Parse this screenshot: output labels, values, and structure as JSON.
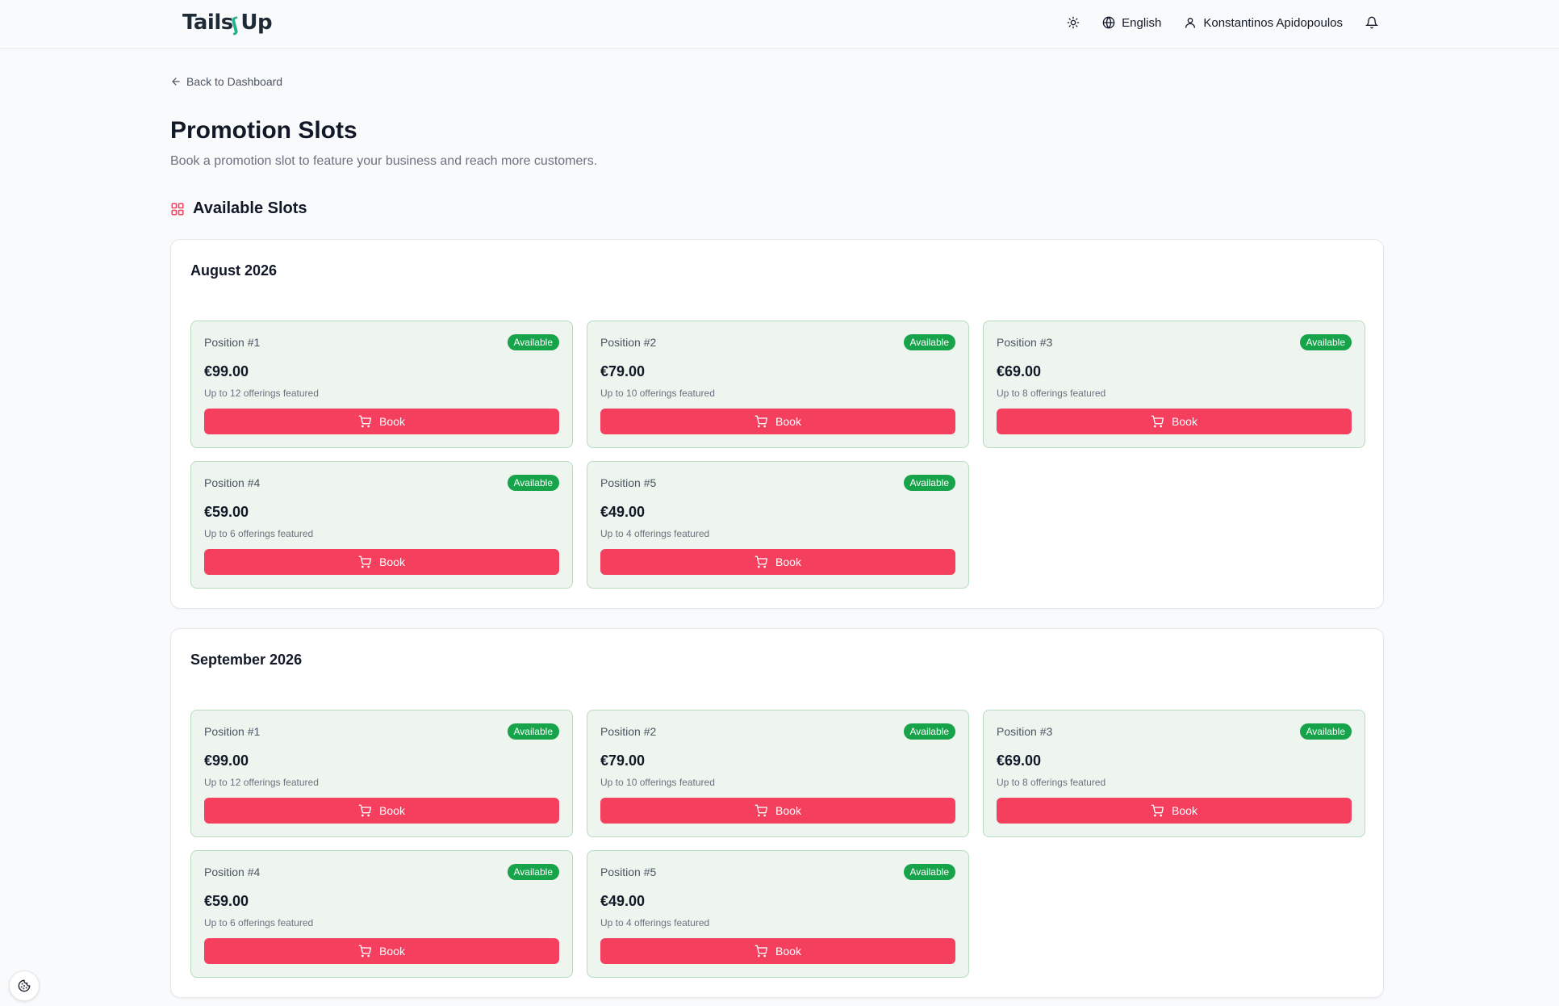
{
  "brand": {
    "part1": "Tails",
    "part2": "Up"
  },
  "nav": {
    "language": "English",
    "user_name": "Konstantinos Apidopoulos"
  },
  "back_link": "Back to Dashboard",
  "page": {
    "title": "Promotion Slots",
    "subtitle": "Book a promotion slot to feature your business and reach more customers."
  },
  "section_title": "Available Slots",
  "colors": {
    "accent": "#f43f5e",
    "available": "#16a34a",
    "slot_bg": "#edf5ee"
  },
  "months": [
    {
      "title": "August 2026",
      "slots": [
        {
          "position": "Position #1",
          "status": "Available",
          "price": "€99.00",
          "offerings": "Up to 12 offerings featured",
          "button": "Book"
        },
        {
          "position": "Position #2",
          "status": "Available",
          "price": "€79.00",
          "offerings": "Up to 10 offerings featured",
          "button": "Book"
        },
        {
          "position": "Position #3",
          "status": "Available",
          "price": "€69.00",
          "offerings": "Up to 8 offerings featured",
          "button": "Book"
        },
        {
          "position": "Position #4",
          "status": "Available",
          "price": "€59.00",
          "offerings": "Up to 6 offerings featured",
          "button": "Book"
        },
        {
          "position": "Position #5",
          "status": "Available",
          "price": "€49.00",
          "offerings": "Up to 4 offerings featured",
          "button": "Book"
        }
      ]
    },
    {
      "title": "September 2026",
      "slots": [
        {
          "position": "Position #1",
          "status": "Available",
          "price": "€99.00",
          "offerings": "Up to 12 offerings featured",
          "button": "Book"
        },
        {
          "position": "Position #2",
          "status": "Available",
          "price": "€79.00",
          "offerings": "Up to 10 offerings featured",
          "button": "Book"
        },
        {
          "position": "Position #3",
          "status": "Available",
          "price": "€69.00",
          "offerings": "Up to 8 offerings featured",
          "button": "Book"
        },
        {
          "position": "Position #4",
          "status": "Available",
          "price": "€59.00",
          "offerings": "Up to 6 offerings featured",
          "button": "Book"
        },
        {
          "position": "Position #5",
          "status": "Available",
          "price": "€49.00",
          "offerings": "Up to 4 offerings featured",
          "button": "Book"
        }
      ]
    }
  ]
}
